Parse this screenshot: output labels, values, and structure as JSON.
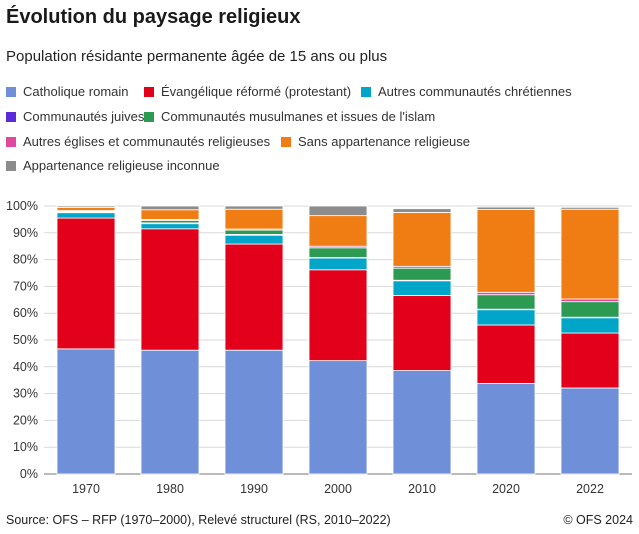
{
  "chart_data": {
    "type": "bar",
    "stacked": true,
    "title": "Évolution du paysage religieux",
    "subtitle": "Population résidante permanente âgée de 15 ans ou plus",
    "categories": [
      "1970",
      "1980",
      "1990",
      "2000",
      "2010",
      "2020",
      "2022"
    ],
    "ylim": [
      0,
      100
    ],
    "yticks": [
      "0%",
      "10%",
      "20%",
      "30%",
      "40%",
      "50%",
      "60%",
      "70%",
      "80%",
      "90%",
      "100%"
    ],
    "grid": true,
    "legend_position": "top",
    "series": [
      {
        "name": "Catholique romain",
        "color": "#6f8fd8",
        "values": [
          46.7,
          46.2,
          46.2,
          42.3,
          38.6,
          33.8,
          32.1
        ]
      },
      {
        "name": "Évangélique réformé (protestant)",
        "color": "#e3001b",
        "values": [
          48.8,
          45.3,
          39.6,
          33.9,
          28.0,
          21.8,
          20.5
        ]
      },
      {
        "name": "Autres communautés chrétiennes",
        "color": "#00a5c8",
        "values": [
          2.0,
          1.9,
          3.3,
          4.4,
          5.5,
          5.7,
          5.7
        ]
      },
      {
        "name": "Communautés juives",
        "color": "#5b2bd9",
        "values": [
          0.3,
          0.3,
          0.3,
          0.2,
          0.2,
          0.2,
          0.2
        ]
      },
      {
        "name": "Communautés musulmanes et issues de l'islam",
        "color": "#2d9a52",
        "values": [
          0.2,
          0.9,
          1.6,
          3.6,
          4.5,
          5.4,
          5.8
        ]
      },
      {
        "name": "Autres églises et communautés religieuses",
        "color": "#e0479e",
        "values": [
          0.3,
          0.4,
          0.4,
          0.6,
          0.7,
          0.9,
          1.0
        ]
      },
      {
        "name": "Sans appartenance religieuse",
        "color": "#f07c14",
        "values": [
          1.2,
          3.6,
          7.4,
          11.4,
          20.1,
          30.9,
          33.5
        ]
      },
      {
        "name": "Appartenance religieuse inconnue",
        "color": "#8c8c8c",
        "values": [
          0.5,
          1.4,
          1.2,
          3.6,
          1.4,
          0.9,
          0.7
        ]
      }
    ]
  },
  "footer": {
    "source": "Source: OFS – RFP (1970–2000), Relevé structurel (RS, 2010–2022)",
    "copyright": "© OFS 2024"
  }
}
